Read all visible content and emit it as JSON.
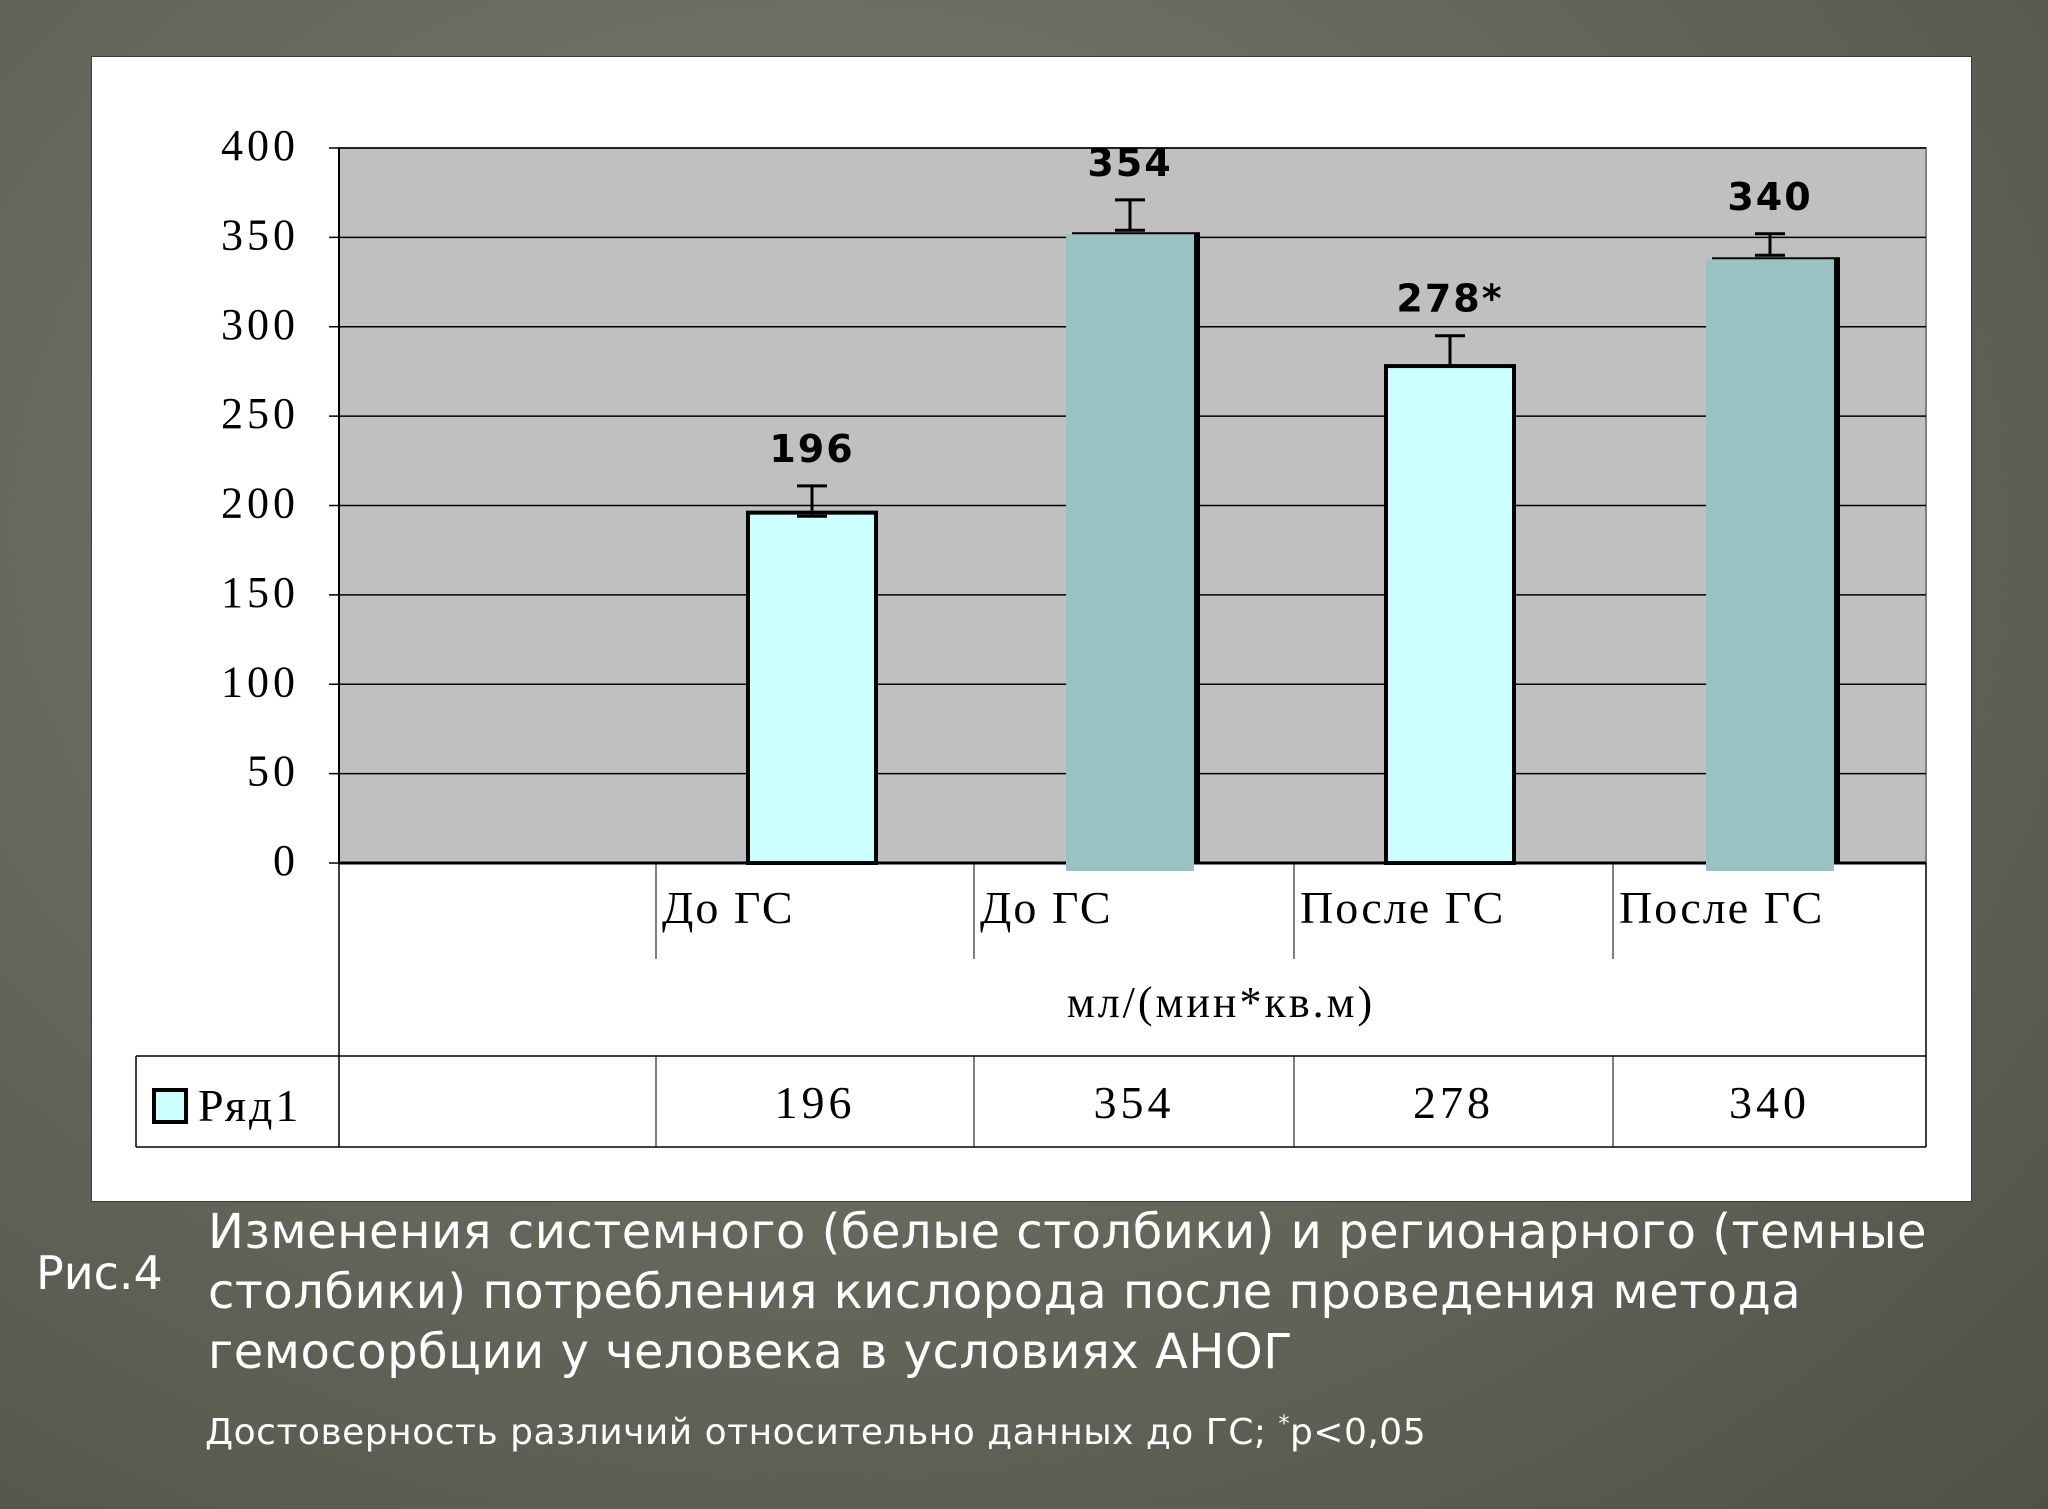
{
  "chart_data": {
    "type": "bar",
    "categories": [
      "До ГС",
      "До ГС",
      "После ГС",
      "После ГС"
    ],
    "series": [
      {
        "name": "Ряд1",
        "values": [
          196,
          354,
          278,
          340
        ],
        "error_upper": [
          211,
          371,
          295,
          352
        ],
        "error_lower": [
          194,
          354,
          278,
          340
        ],
        "data_labels": [
          "196",
          "354",
          "278*",
          "340"
        ],
        "colors": [
          "#ccffff",
          "#99c2c2",
          "#ccffff",
          "#99c2c2"
        ]
      }
    ],
    "ylim": [
      0,
      400
    ],
    "yticks": [
      0,
      50,
      100,
      150,
      200,
      250,
      300,
      350,
      400
    ],
    "xlabel": "мл/(мин*кв.м)",
    "ylabel": "",
    "grid": true,
    "plot_background": "#c0c0c0",
    "data_table": {
      "legend_label": "Ряд1",
      "values": [
        "196",
        "354",
        "278",
        "340"
      ]
    }
  },
  "caption": {
    "label": "Рис.4",
    "text": "Изменения системного (белые столбики) и регионарного (темные столбики) потребления кислорода после проведения метода гемосорбции у человека в условиях АНОГ",
    "note_prefix": "Достоверность различий относительно данных до ГС; ",
    "note_sup": "*",
    "note_suffix": "p<0,05"
  }
}
